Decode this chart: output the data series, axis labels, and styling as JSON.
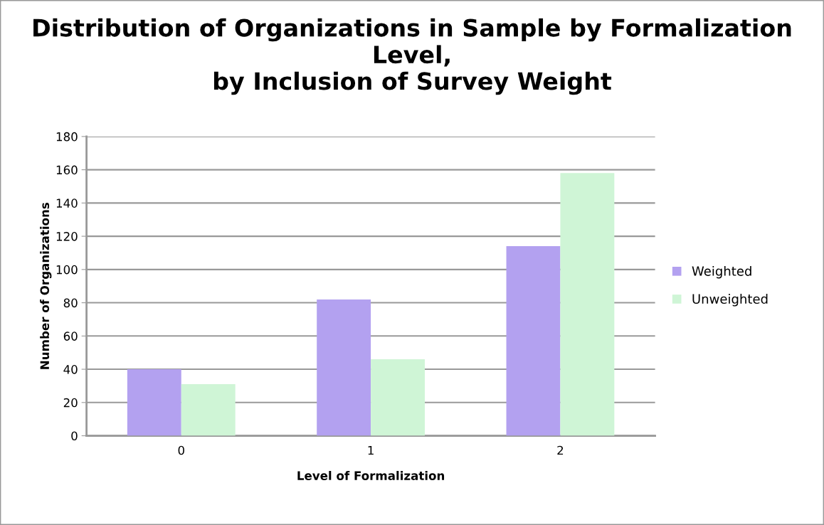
{
  "chart_data": {
    "type": "bar",
    "title": "Distribution of Organizations in Sample by Formalization Level,\nby Inclusion of Survey Weight",
    "xlabel": "Level of Formalization",
    "ylabel": "Number of Organizations",
    "categories": [
      "0",
      "1",
      "2"
    ],
    "series": [
      {
        "name": "Weighted",
        "color": "#b3a1f0",
        "values": [
          40,
          82,
          114
        ]
      },
      {
        "name": "Unweighted",
        "color": "#cff5d6",
        "values": [
          31,
          46,
          158
        ]
      }
    ],
    "ylim": [
      0,
      180
    ],
    "yticks": [
      0,
      20,
      40,
      60,
      80,
      100,
      120,
      140,
      160,
      180
    ],
    "grid": "y",
    "legend": "right"
  }
}
